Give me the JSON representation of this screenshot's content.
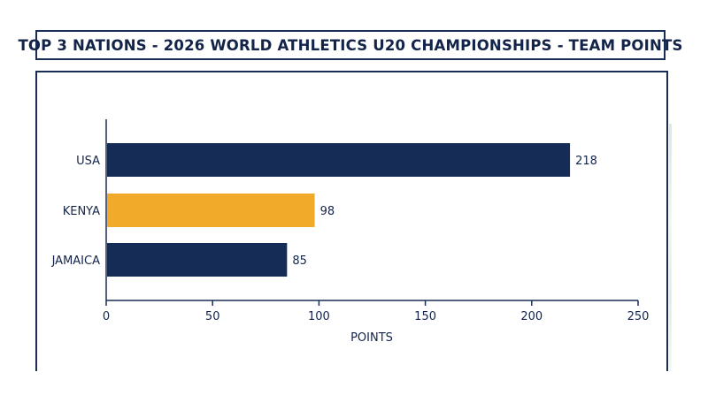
{
  "title": "TOP 3 NATIONS - 2026 WORLD ATHLETICS U20 CHAMPIONSHIPS - TEAM POINTS",
  "colors": {
    "frame": "#1a2d55",
    "navy": "#142c56",
    "gold": "#f2aa2b",
    "text": "#13244a"
  },
  "chart_data": {
    "type": "bar",
    "orientation": "horizontal",
    "categories": [
      "USA",
      "KENYA",
      "JAMAICA"
    ],
    "values": [
      218,
      98,
      85
    ],
    "bar_colors": [
      "#142c56",
      "#f2aa2b",
      "#142c56"
    ],
    "data_labels": [
      "218",
      "98",
      "85"
    ],
    "xlabel": "POINTS",
    "ylabel": "",
    "xlim": [
      0,
      250
    ],
    "xticks": [
      0,
      50,
      100,
      150,
      200,
      250
    ],
    "grid": false,
    "legend": "none"
  }
}
